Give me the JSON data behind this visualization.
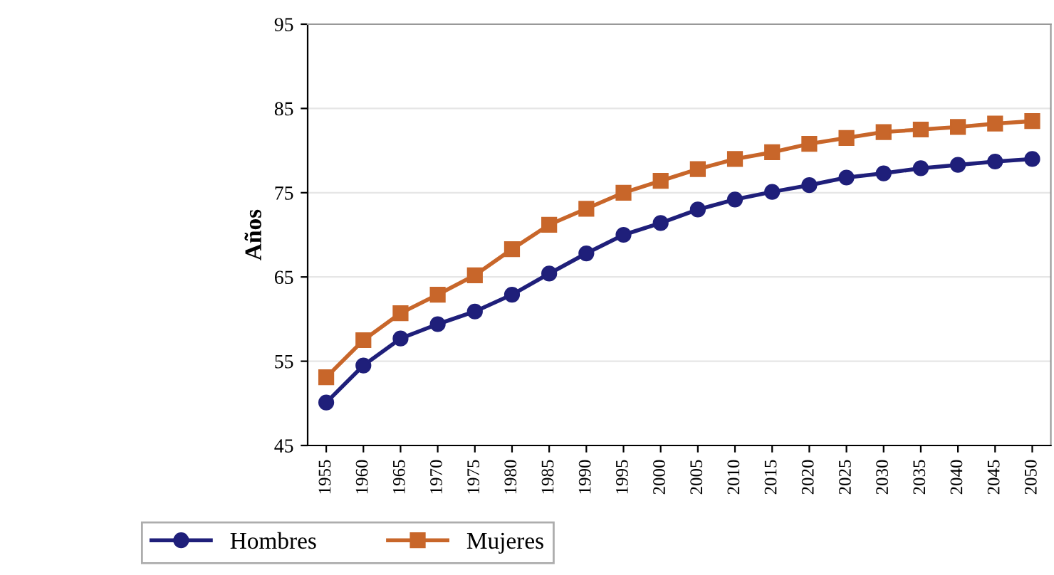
{
  "chart_data": {
    "type": "line",
    "ylabel": "Años",
    "categories": [
      "1955",
      "1960",
      "1965",
      "1970",
      "1975",
      "1980",
      "1985",
      "1990",
      "1995",
      "2000",
      "2005",
      "2010",
      "2015",
      "2020",
      "2025",
      "2030",
      "2035",
      "2040",
      "2045",
      "2050"
    ],
    "series": [
      {
        "name": "Hombres",
        "color": "#1f1f7a",
        "marker": "circle",
        "values": [
          50.1,
          54.5,
          57.7,
          59.4,
          60.9,
          62.9,
          65.4,
          67.8,
          70.0,
          71.4,
          73.0,
          74.2,
          75.1,
          75.9,
          76.8,
          77.3,
          77.9,
          78.3,
          78.7,
          79.0
        ]
      },
      {
        "name": "Mujeres",
        "color": "#c8662a",
        "marker": "square",
        "values": [
          53.1,
          57.5,
          60.7,
          62.9,
          65.2,
          68.3,
          71.2,
          73.1,
          75.0,
          76.4,
          77.8,
          79.0,
          79.8,
          80.8,
          81.5,
          82.2,
          82.5,
          82.8,
          83.2,
          83.5
        ]
      }
    ],
    "ylim": [
      45,
      95
    ],
    "yticks": [
      45,
      55,
      65,
      75,
      85,
      95
    ],
    "grid": "y",
    "legend": "bottom"
  }
}
